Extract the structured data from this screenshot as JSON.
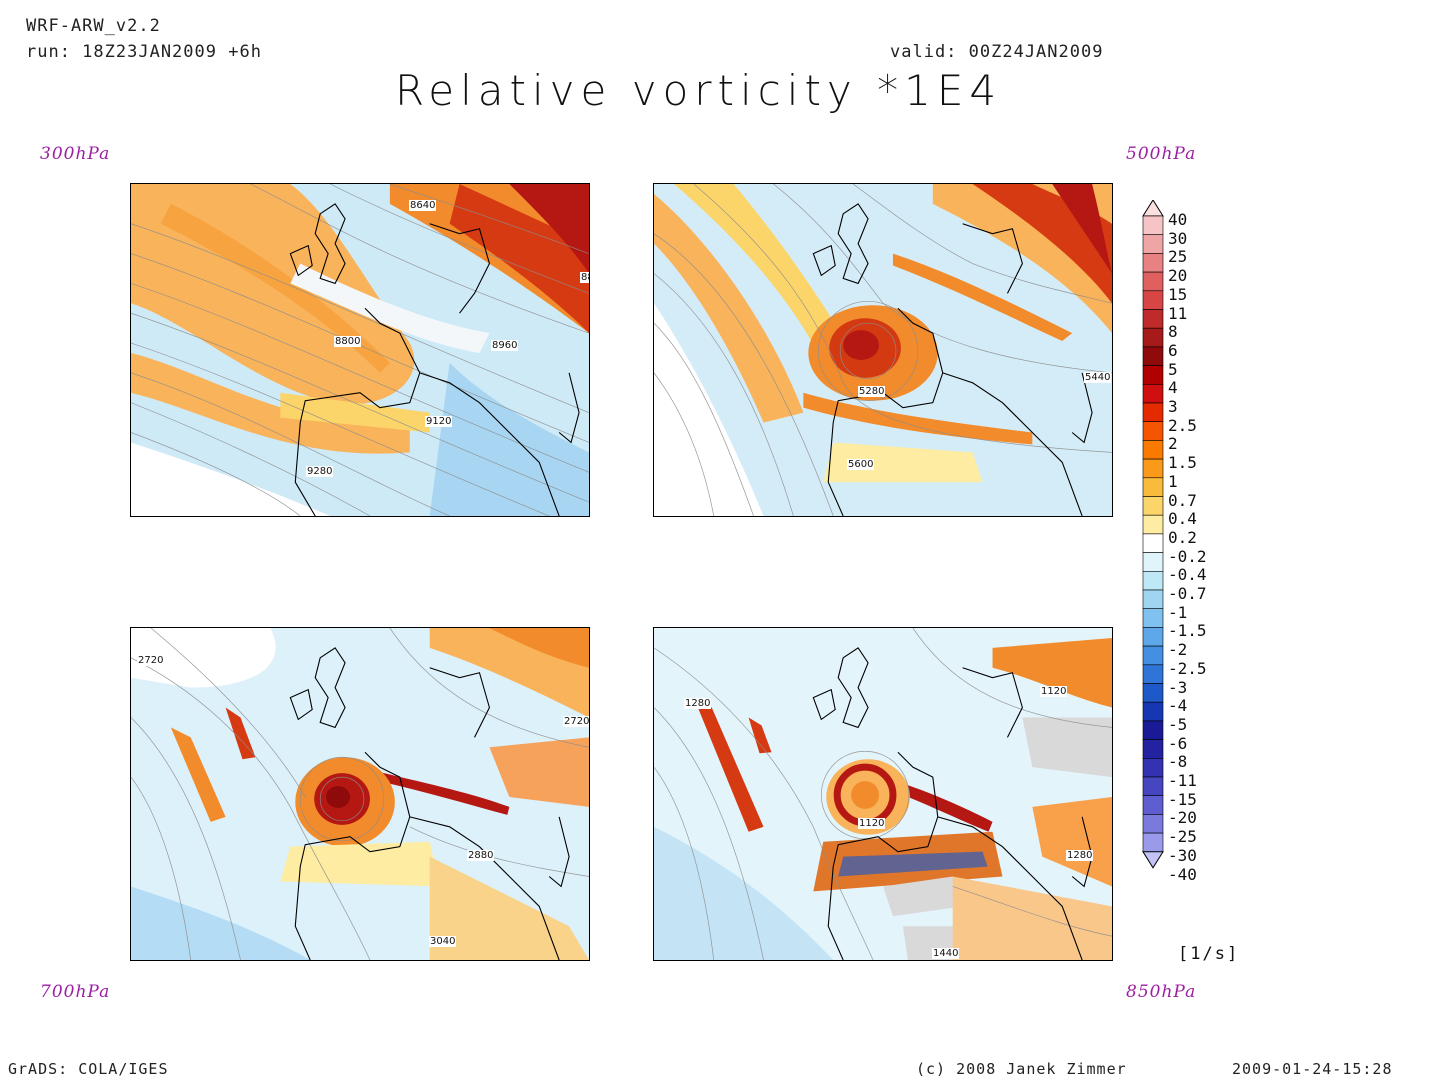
{
  "header": {
    "model": "WRF-ARW_v2.2",
    "run": "run: 18Z23JAN2009 +6h",
    "valid": "valid: 00Z24JAN2009",
    "title": "Relative vorticity *1E4"
  },
  "panels": [
    {
      "level": "300hPa",
      "contour_labels": [
        "8640",
        "8800",
        "8960",
        "9120",
        "9280",
        "88"
      ]
    },
    {
      "level": "500hPa",
      "contour_labels": [
        "5280",
        "5440",
        "5600"
      ]
    },
    {
      "level": "700hPa",
      "contour_labels": [
        "2720",
        "2720",
        "2880",
        "3040"
      ]
    },
    {
      "level": "850hPa",
      "contour_labels": [
        "1280",
        "1120",
        "1120",
        "1280",
        "1440"
      ]
    }
  ],
  "colorbar": {
    "units": "[1/s]",
    "labels": [
      "40",
      "30",
      "25",
      "20",
      "15",
      "11",
      "8",
      "6",
      "5",
      "4",
      "3",
      "2.5",
      "2",
      "1.5",
      "1",
      "0.7",
      "0.4",
      "0.2",
      "-0.2",
      "-0.4",
      "-0.7",
      "-1",
      "-1.5",
      "-2",
      "-2.5",
      "-3",
      "-4",
      "-5",
      "-6",
      "-8",
      "-11",
      "-15",
      "-20",
      "-25",
      "-30",
      "-40"
    ],
    "colors": [
      "#fbe0e0",
      "#f6c4c4",
      "#efa5a5",
      "#e88181",
      "#e06060",
      "#d84545",
      "#bf2a2a",
      "#a61a1a",
      "#8f0a0a",
      "#b00000",
      "#d01010",
      "#e62a00",
      "#f55500",
      "#fa7a00",
      "#fb9a1a",
      "#f9bb3c",
      "#fbd569",
      "#fdeca2",
      "#ffffff",
      "#dff4fb",
      "#bfe8f6",
      "#a0d5f2",
      "#7fc1ef",
      "#5ea8ea",
      "#458fe2",
      "#2f75d8",
      "#1d59c9",
      "#1537b4",
      "#1a1a96",
      "#2323a2",
      "#3232b2",
      "#4646c0",
      "#5e5ed0",
      "#7a7add",
      "#9a9aea",
      "#c3c3f5"
    ]
  },
  "footer": {
    "left": "GrADS: COLA/IGES",
    "center": "(c) 2008 Janek Zimmer",
    "right": "2009-01-24-15:28"
  }
}
